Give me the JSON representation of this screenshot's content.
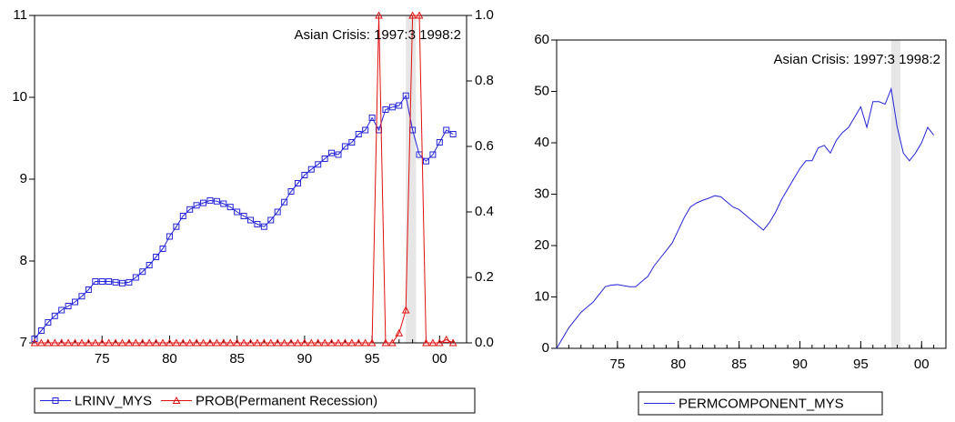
{
  "chart_data": [
    {
      "type": "line",
      "annotation": "Asian Crisis: 1997:3 1998:2",
      "shade": [
        1997.5,
        1998.25
      ],
      "x": [
        1970,
        1970.5,
        1971,
        1971.5,
        1972,
        1972.5,
        1973,
        1973.5,
        1974,
        1974.5,
        1975,
        1975.5,
        1976,
        1976.5,
        1977,
        1977.5,
        1978,
        1978.5,
        1979,
        1979.5,
        1980,
        1980.5,
        1981,
        1981.5,
        1982,
        1982.5,
        1983,
        1983.5,
        1984,
        1984.5,
        1985,
        1985.5,
        1986,
        1986.5,
        1987,
        1987.5,
        1988,
        1988.5,
        1989,
        1989.5,
        1990,
        1990.5,
        1991,
        1991.5,
        1992,
        1992.5,
        1993,
        1993.5,
        1994,
        1994.5,
        1995,
        1995.5,
        1996,
        1996.5,
        1997,
        1997.5,
        1998,
        1998.5,
        1999,
        1999.5,
        2000,
        2000.5,
        2001
      ],
      "xlim": [
        1970,
        2002
      ],
      "xticks": [
        {
          "value": 1975,
          "label": "75"
        },
        {
          "value": 1980,
          "label": "80"
        },
        {
          "value": 1985,
          "label": "85"
        },
        {
          "value": 1990,
          "label": "90"
        },
        {
          "value": 1995,
          "label": "95"
        },
        {
          "value": 2000,
          "label": "00"
        }
      ],
      "ylim": [
        7,
        11
      ],
      "yticks": [
        7,
        8,
        9,
        10,
        11
      ],
      "y2lim": [
        0,
        1
      ],
      "y2ticks": [
        {
          "value": 0,
          "label": "0.0"
        },
        {
          "value": 0.2,
          "label": "0.2"
        },
        {
          "value": 0.4,
          "label": "0.4"
        },
        {
          "value": 0.6,
          "label": "0.6"
        },
        {
          "value": 0.8,
          "label": "0.8"
        },
        {
          "value": 1,
          "label": "1.0"
        }
      ],
      "series": [
        {
          "name": "LRINV_MYS",
          "color": "#2424d8",
          "marker": "square",
          "values": [
            7.05,
            7.15,
            7.25,
            7.33,
            7.4,
            7.45,
            7.5,
            7.57,
            7.65,
            7.75,
            7.75,
            7.75,
            7.74,
            7.73,
            7.74,
            7.8,
            7.87,
            7.95,
            8.05,
            8.15,
            8.3,
            8.42,
            8.55,
            8.63,
            8.68,
            8.71,
            8.74,
            8.73,
            8.7,
            8.66,
            8.6,
            8.55,
            8.5,
            8.45,
            8.42,
            8.5,
            8.6,
            8.72,
            8.85,
            8.95,
            9.05,
            9.12,
            9.18,
            9.25,
            9.32,
            9.3,
            9.4,
            9.45,
            9.55,
            9.6,
            9.75,
            9.6,
            9.85,
            9.88,
            9.9,
            10.02,
            9.6,
            9.3,
            9.22,
            9.3,
            9.45,
            9.6,
            9.55
          ]
        },
        {
          "name": "PROB(Permanent Recession)",
          "color": "#e01010",
          "marker": "triangle",
          "axis": "y2",
          "values": [
            0,
            0,
            0,
            0,
            0,
            0,
            0,
            0,
            0,
            0,
            0,
            0,
            0,
            0,
            0,
            0,
            0,
            0,
            0,
            0,
            0,
            0,
            0,
            0,
            0,
            0,
            0,
            0,
            0,
            0,
            0,
            0,
            0,
            0,
            0,
            0,
            0,
            0,
            0,
            0,
            0,
            0,
            0,
            0,
            0,
            0,
            0,
            0,
            0,
            0,
            0,
            1,
            0,
            0,
            0.03,
            0.1,
            1,
            1,
            0,
            0,
            0,
            0.01,
            0
          ]
        }
      ]
    },
    {
      "type": "line",
      "annotation": "Asian Crisis: 1997:3 1998:2",
      "shade": [
        1997.5,
        1998.25
      ],
      "x": [
        1970,
        1970.5,
        1971,
        1971.5,
        1972,
        1972.5,
        1973,
        1973.5,
        1974,
        1974.5,
        1975,
        1975.5,
        1976,
        1976.5,
        1977,
        1977.5,
        1978,
        1978.5,
        1979,
        1979.5,
        1980,
        1980.5,
        1981,
        1981.5,
        1982,
        1982.5,
        1983,
        1983.5,
        1984,
        1984.5,
        1985,
        1985.5,
        1986,
        1986.5,
        1987,
        1987.5,
        1988,
        1988.5,
        1989,
        1989.5,
        1990,
        1990.5,
        1991,
        1991.5,
        1992,
        1992.5,
        1993,
        1993.5,
        1994,
        1994.5,
        1995,
        1995.5,
        1996,
        1996.5,
        1997,
        1997.5,
        1998,
        1998.5,
        1999,
        1999.5,
        2000,
        2000.5,
        2001
      ],
      "xlim": [
        1970,
        2002
      ],
      "xticks": [
        {
          "value": 1975,
          "label": "75"
        },
        {
          "value": 1980,
          "label": "80"
        },
        {
          "value": 1985,
          "label": "85"
        },
        {
          "value": 1990,
          "label": "90"
        },
        {
          "value": 1995,
          "label": "95"
        },
        {
          "value": 2000,
          "label": "00"
        }
      ],
      "ylim": [
        0,
        60
      ],
      "yticks": [
        0,
        10,
        20,
        30,
        40,
        50,
        60
      ],
      "series": [
        {
          "name": "PERMCOMPONENT_MYS",
          "color": "#2424d8",
          "marker": "none",
          "values": [
            0,
            2,
            4,
            5.5,
            7,
            8,
            9,
            10.5,
            12,
            12.3,
            12.4,
            12.2,
            12,
            12,
            13,
            14,
            16,
            17.5,
            19,
            20.5,
            23,
            25.5,
            27.5,
            28.3,
            28.8,
            29.2,
            29.7,
            29.5,
            28.5,
            27.5,
            27,
            26,
            25,
            24,
            23,
            24.5,
            26.5,
            29,
            31,
            33,
            35,
            36.5,
            36.5,
            39,
            39.5,
            38,
            40.5,
            42,
            43,
            45,
            47,
            43,
            48,
            48,
            47.5,
            50.5,
            43,
            38,
            36.5,
            38,
            40,
            43,
            41.5
          ]
        }
      ]
    }
  ]
}
